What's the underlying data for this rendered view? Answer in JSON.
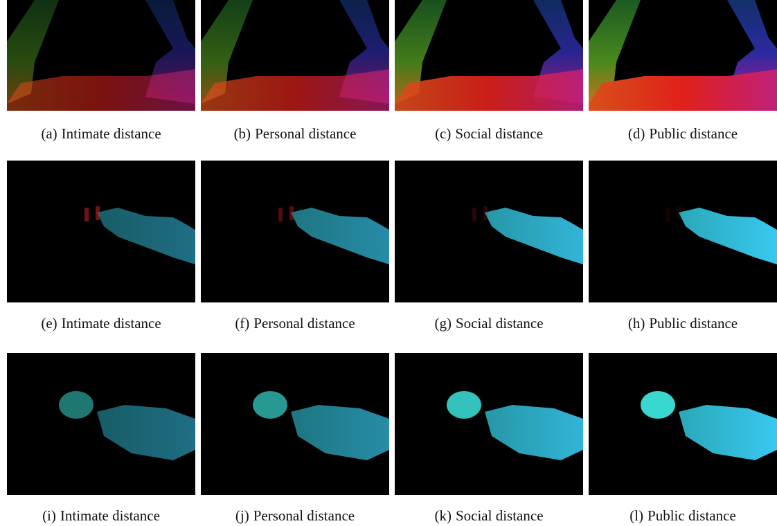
{
  "figure": {
    "panels": [
      {
        "label": "(a)",
        "caption": "Intimate distance"
      },
      {
        "label": "(b)",
        "caption": "Personal distance"
      },
      {
        "label": "(c)",
        "caption": "Social distance"
      },
      {
        "label": "(d)",
        "caption": "Public distance"
      },
      {
        "label": "(e)",
        "caption": "Intimate distance"
      },
      {
        "label": "(f)",
        "caption": "Personal distance"
      },
      {
        "label": "(g)",
        "caption": "Social distance"
      },
      {
        "label": "(h)",
        "caption": "Public distance"
      },
      {
        "label": "(i)",
        "caption": "Intimate distance"
      },
      {
        "label": "(j)",
        "caption": "Personal distance"
      },
      {
        "label": "(k)",
        "caption": "Social distance"
      },
      {
        "label": "(l)",
        "caption": "Public distance"
      }
    ]
  }
}
